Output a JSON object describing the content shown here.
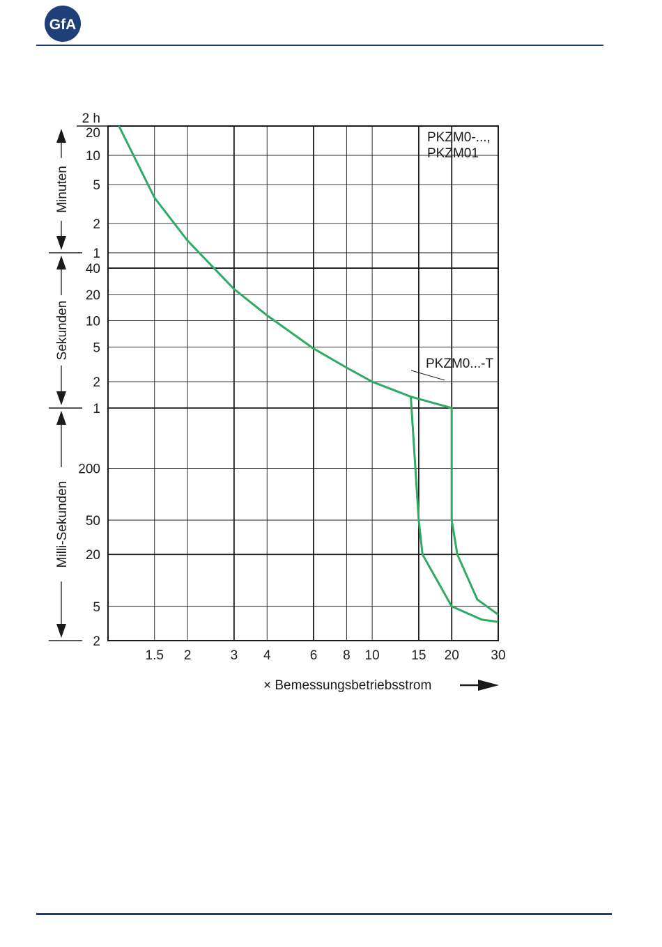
{
  "header": {
    "logo_text": "GfA",
    "brand_color": "#1f3f78"
  },
  "chart_data": {
    "type": "line",
    "title": "",
    "xlabel": "× Bemessungsbetriebsstrom",
    "ylabel": "",
    "xscale": "log",
    "xlim": [
      1,
      30
    ],
    "x_ticks": [
      {
        "label": "1.5",
        "value": 1.5
      },
      {
        "label": "2",
        "value": 2
      },
      {
        "label": "3",
        "value": 3
      },
      {
        "label": "4",
        "value": 4
      },
      {
        "label": "6",
        "value": 6
      },
      {
        "label": "8",
        "value": 8
      },
      {
        "label": "10",
        "value": 10
      },
      {
        "label": "15",
        "value": 15
      },
      {
        "label": "20",
        "value": 20
      },
      {
        "label": "30",
        "value": 30
      }
    ],
    "y_bands": [
      {
        "label": "Minuten",
        "ticks": [
          {
            "label": "2 h",
            "value": 7200
          },
          {
            "label": "20",
            "value": 1200
          },
          {
            "label": "10",
            "value": 600
          },
          {
            "label": "5",
            "value": 300
          },
          {
            "label": "2",
            "value": 120
          },
          {
            "label": "1",
            "value": 60
          }
        ]
      },
      {
        "label": "Sekunden",
        "ticks": [
          {
            "label": "40",
            "value": 40
          },
          {
            "label": "20",
            "value": 20
          },
          {
            "label": "10",
            "value": 10
          },
          {
            "label": "5",
            "value": 5
          },
          {
            "label": "2",
            "value": 2
          },
          {
            "label": "1",
            "value": 1
          }
        ]
      },
      {
        "label": "Milli-Sekunden",
        "ticks": [
          {
            "label": "200",
            "value": 0.2
          },
          {
            "label": "50",
            "value": 0.05
          },
          {
            "label": "20",
            "value": 0.02
          },
          {
            "label": "5",
            "value": 0.005
          },
          {
            "label": "2",
            "value": 0.002
          }
        ]
      }
    ],
    "grid": true,
    "series": [
      {
        "name": "PKZM0-..., PKZM01",
        "color": "#2eaa64",
        "points": [
          [
            1.1,
            1200
          ],
          [
            1.5,
            220
          ],
          [
            2,
            80
          ],
          [
            3,
            23
          ],
          [
            4,
            11.5
          ],
          [
            6,
            4.8
          ],
          [
            8,
            2.9
          ],
          [
            10,
            2.0
          ],
          [
            14,
            1.35
          ],
          [
            15,
            0.05
          ],
          [
            15.5,
            0.02
          ],
          [
            20,
            0.005
          ],
          [
            26,
            0.0035
          ],
          [
            30,
            0.0033
          ]
        ]
      },
      {
        "name": "PKZM0...-T",
        "color": "#2eaa64",
        "points": [
          [
            14,
            1.35
          ],
          [
            20,
            1.0
          ],
          [
            20,
            0.05
          ],
          [
            21,
            0.02
          ],
          [
            25,
            0.006
          ],
          [
            30,
            0.004
          ]
        ]
      }
    ],
    "annotations": [
      {
        "text": "PKZM0-...,",
        "x": 16,
        "y": 1100
      },
      {
        "text": "PKZM01",
        "x": 16,
        "y": 600
      },
      {
        "text": "PKZM0...-T",
        "x": 16,
        "y": 1.6
      }
    ]
  }
}
